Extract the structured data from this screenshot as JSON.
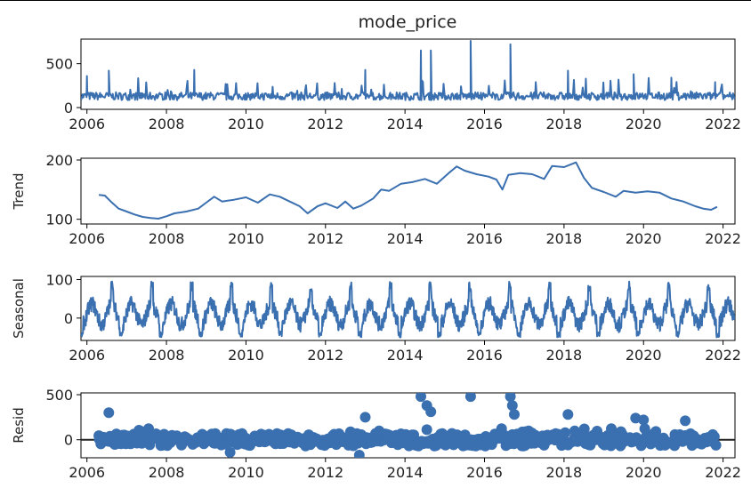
{
  "title": "mode_price",
  "chart_data": [
    {
      "id": "observed",
      "type": "line",
      "ylabel": "",
      "ylim": [
        -20,
        780
      ],
      "yticks": [
        0,
        500
      ],
      "xlim": [
        2005.85,
        2022.3
      ],
      "xticks": [
        2006,
        2008,
        2010,
        2012,
        2014,
        2016,
        2018,
        2020,
        2022
      ],
      "color": "#3a6fb0",
      "gen": {
        "start": 2005.85,
        "end": 2022.3,
        "step": 0.02,
        "base": 130,
        "noise": 45,
        "min": 30,
        "spikes": [
          [
            2006.0,
            360
          ],
          [
            2006.55,
            420
          ],
          [
            2008.7,
            430
          ],
          [
            2013.0,
            430
          ],
          [
            2014.4,
            650
          ],
          [
            2014.65,
            650
          ],
          [
            2015.65,
            760
          ],
          [
            2016.65,
            720
          ],
          [
            2018.1,
            420
          ],
          [
            2019.75,
            380
          ],
          [
            2020.7,
            340
          ],
          [
            2021.8,
            290
          ]
        ]
      }
    },
    {
      "id": "trend",
      "type": "line",
      "ylabel": "Trend",
      "ylim": [
        92,
        203
      ],
      "yticks": [
        100,
        200
      ],
      "xlim": [
        2005.85,
        2022.3
      ],
      "xticks": [
        2006,
        2008,
        2010,
        2012,
        2014,
        2016,
        2018,
        2020,
        2022
      ],
      "color": "#3a6fb0",
      "points": [
        [
          2006.3,
          141
        ],
        [
          2006.45,
          140
        ],
        [
          2006.6,
          130
        ],
        [
          2006.8,
          118
        ],
        [
          2007.0,
          113
        ],
        [
          2007.2,
          108
        ],
        [
          2007.4,
          104
        ],
        [
          2007.6,
          102
        ],
        [
          2007.8,
          101
        ],
        [
          2008.0,
          105
        ],
        [
          2008.2,
          110
        ],
        [
          2008.5,
          113
        ],
        [
          2008.8,
          118
        ],
        [
          2009.0,
          128
        ],
        [
          2009.2,
          138
        ],
        [
          2009.4,
          130
        ],
        [
          2009.7,
          133
        ],
        [
          2010.0,
          137
        ],
        [
          2010.3,
          128
        ],
        [
          2010.6,
          142
        ],
        [
          2010.85,
          138
        ],
        [
          2011.1,
          130
        ],
        [
          2011.35,
          122
        ],
        [
          2011.55,
          110
        ],
        [
          2011.8,
          122
        ],
        [
          2012.0,
          127
        ],
        [
          2012.3,
          119
        ],
        [
          2012.5,
          130
        ],
        [
          2012.7,
          118
        ],
        [
          2012.9,
          123
        ],
        [
          2013.2,
          135
        ],
        [
          2013.4,
          150
        ],
        [
          2013.6,
          148
        ],
        [
          2013.9,
          160
        ],
        [
          2014.2,
          163
        ],
        [
          2014.5,
          168
        ],
        [
          2014.8,
          160
        ],
        [
          2015.1,
          178
        ],
        [
          2015.3,
          189
        ],
        [
          2015.5,
          182
        ],
        [
          2015.8,
          176
        ],
        [
          2016.1,
          172
        ],
        [
          2016.3,
          167
        ],
        [
          2016.45,
          150
        ],
        [
          2016.6,
          175
        ],
        [
          2016.9,
          178
        ],
        [
          2017.2,
          176
        ],
        [
          2017.5,
          168
        ],
        [
          2017.7,
          190
        ],
        [
          2018.0,
          188
        ],
        [
          2018.3,
          196
        ],
        [
          2018.5,
          170
        ],
        [
          2018.7,
          153
        ],
        [
          2019.0,
          146
        ],
        [
          2019.3,
          138
        ],
        [
          2019.5,
          148
        ],
        [
          2019.8,
          145
        ],
        [
          2020.1,
          147
        ],
        [
          2020.4,
          145
        ],
        [
          2020.7,
          135
        ],
        [
          2021.0,
          130
        ],
        [
          2021.3,
          122
        ],
        [
          2021.5,
          118
        ],
        [
          2021.7,
          116
        ],
        [
          2021.85,
          121
        ]
      ]
    },
    {
      "id": "seasonal",
      "type": "line",
      "ylabel": "Seasonal",
      "ylim": [
        -58,
        108
      ],
      "yticks": [
        0,
        100
      ],
      "xlim": [
        2005.85,
        2022.3
      ],
      "xticks": [
        2006,
        2008,
        2010,
        2012,
        2014,
        2016,
        2018,
        2020,
        2022
      ],
      "color": "#3a6fb0",
      "gen": {
        "start": 2005.85,
        "end": 2022.3,
        "step": 0.01,
        "period": 1.0,
        "amp": 45,
        "offset": 10,
        "spike": 95,
        "low": -50
      }
    },
    {
      "id": "resid",
      "type": "scatter",
      "ylabel": "Resid",
      "ylim": [
        -200,
        520
      ],
      "yticks": [
        0,
        500
      ],
      "xlim": [
        2005.85,
        2022.3
      ],
      "xticks": [
        2006,
        2008,
        2010,
        2012,
        2014,
        2016,
        2018,
        2020,
        2022
      ],
      "color": "#3a6fb0",
      "zero_line": true,
      "gen": {
        "start": 2006.3,
        "end": 2021.85,
        "step": 0.04,
        "noise": 70,
        "outliers": [
          [
            2006.55,
            300
          ],
          [
            2013.0,
            250
          ],
          [
            2014.4,
            480
          ],
          [
            2014.55,
            380
          ],
          [
            2014.65,
            310
          ],
          [
            2015.65,
            480
          ],
          [
            2016.65,
            480
          ],
          [
            2016.7,
            380
          ],
          [
            2016.75,
            280
          ],
          [
            2018.1,
            280
          ],
          [
            2019.8,
            240
          ],
          [
            2020.0,
            220
          ],
          [
            2021.05,
            210
          ],
          [
            2012.85,
            -170
          ],
          [
            2009.6,
            -140
          ]
        ]
      }
    }
  ]
}
